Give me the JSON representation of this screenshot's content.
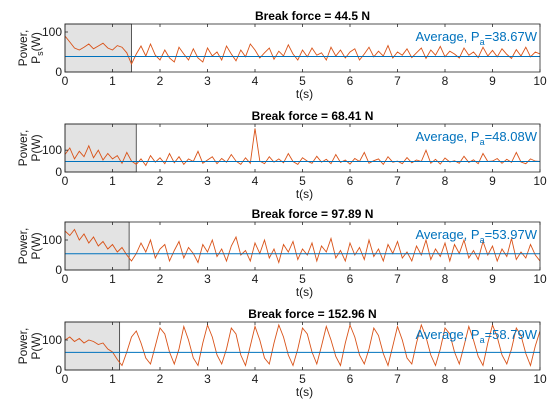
{
  "chart_data": [
    {
      "type": "line",
      "title": "Break force = 44.5 N",
      "xlabel": "t(s)",
      "ylabel_top": "Power,",
      "ylabel_bottom_main": "P",
      "ylabel_bottom_sub": "s",
      "ylabel_bottom_rest": "(W)",
      "xlim": [
        0,
        10
      ],
      "ylim": [
        0,
        120
      ],
      "xticks": [
        "0",
        "1",
        "2",
        "3",
        "4",
        "5",
        "6",
        "7",
        "8",
        "9",
        "10"
      ],
      "yticks": [
        "0",
        "100"
      ],
      "annotation_main": "Average, P",
      "annotation_sub": "a",
      "annotation_rest": "=38.67W",
      "average": 38.67,
      "shaded_region": [
        0,
        1.4
      ],
      "series": [
        {
          "color": "#d95319",
          "x": [
            0,
            0.1,
            0.2,
            0.3,
            0.4,
            0.5,
            0.6,
            0.7,
            0.8,
            0.9,
            1.0,
            1.1,
            1.2,
            1.3,
            1.4,
            1.5,
            1.6,
            1.7,
            1.8,
            1.9,
            2.0,
            2.1,
            2.2,
            2.3,
            2.4,
            2.5,
            2.6,
            2.7,
            2.8,
            2.9,
            3.0,
            3.1,
            3.2,
            3.3,
            3.4,
            3.5,
            3.6,
            3.7,
            3.8,
            3.9,
            4.0,
            4.1,
            4.2,
            4.3,
            4.4,
            4.5,
            4.6,
            4.7,
            4.8,
            4.9,
            5.0,
            5.1,
            5.2,
            5.3,
            5.4,
            5.5,
            5.6,
            5.7,
            5.8,
            5.9,
            6.0,
            6.1,
            6.2,
            6.3,
            6.4,
            6.5,
            6.6,
            6.7,
            6.8,
            6.9,
            7.0,
            7.1,
            7.2,
            7.3,
            7.4,
            7.5,
            7.6,
            7.7,
            7.8,
            7.9,
            8.0,
            8.1,
            8.2,
            8.3,
            8.4,
            8.5,
            8.6,
            8.7,
            8.8,
            8.9,
            9.0,
            9.1,
            9.2,
            9.3,
            9.4,
            9.5,
            9.6,
            9.7,
            9.8,
            9.9,
            10.0
          ],
          "y": [
            90,
            75,
            60,
            55,
            62,
            70,
            58,
            65,
            72,
            60,
            55,
            66,
            62,
            48,
            20,
            45,
            65,
            40,
            70,
            42,
            30,
            55,
            35,
            25,
            62,
            45,
            30,
            58,
            35,
            25,
            60,
            40,
            50,
            30,
            65,
            45,
            28,
            55,
            38,
            70,
            55,
            35,
            48,
            60,
            32,
            52,
            40,
            68,
            45,
            30,
            55,
            38,
            60,
            42,
            48,
            30,
            62,
            40,
            55,
            35,
            50,
            58,
            30,
            45,
            62,
            38,
            52,
            40,
            66,
            35,
            50,
            42,
            58,
            36,
            48,
            60,
            34,
            55,
            42,
            64,
            38,
            52,
            45,
            35,
            60,
            42,
            50,
            36,
            62,
            40,
            54,
            38,
            58,
            44,
            34,
            56,
            40,
            62,
            38,
            50,
            45
          ]
        },
        {
          "color": "#0072bd",
          "x": [
            0,
            10
          ],
          "y": [
            38.67,
            38.67
          ]
        }
      ]
    },
    {
      "type": "line",
      "title": "Break force = 68.41 N",
      "xlabel": "t(s)",
      "ylabel_top": "Power,",
      "ylabel_bottom_main": "P(W)",
      "xlim": [
        0,
        10
      ],
      "ylim": [
        0,
        220
      ],
      "xticks": [
        "0",
        "1",
        "2",
        "3",
        "4",
        "5",
        "6",
        "7",
        "8",
        "9",
        "10"
      ],
      "yticks": [
        "0",
        "100"
      ],
      "annotation_main": "Average, P",
      "annotation_sub": "a",
      "annotation_rest": "=48.08W",
      "average": 48.08,
      "shaded_region": [
        0,
        1.5
      ],
      "series": [
        {
          "color": "#d95319",
          "x": [
            0,
            0.1,
            0.2,
            0.3,
            0.4,
            0.5,
            0.6,
            0.7,
            0.8,
            0.9,
            1.0,
            1.1,
            1.2,
            1.3,
            1.4,
            1.5,
            1.6,
            1.7,
            1.8,
            1.9,
            2.0,
            2.1,
            2.2,
            2.3,
            2.4,
            2.5,
            2.6,
            2.7,
            2.8,
            2.9,
            3.0,
            3.1,
            3.2,
            3.3,
            3.4,
            3.5,
            3.6,
            3.7,
            3.8,
            3.9,
            4.0,
            4.1,
            4.2,
            4.3,
            4.4,
            4.5,
            4.6,
            4.7,
            4.8,
            4.9,
            5.0,
            5.1,
            5.2,
            5.3,
            5.4,
            5.5,
            5.6,
            5.7,
            5.8,
            5.9,
            6.0,
            6.1,
            6.2,
            6.3,
            6.4,
            6.5,
            6.6,
            6.7,
            6.8,
            6.9,
            7.0,
            7.1,
            7.2,
            7.3,
            7.4,
            7.5,
            7.6,
            7.7,
            7.8,
            7.9,
            8.0,
            8.1,
            8.2,
            8.3,
            8.4,
            8.5,
            8.6,
            8.7,
            8.8,
            8.9,
            9.0,
            9.1,
            9.2,
            9.3,
            9.4,
            9.5,
            9.6,
            9.7,
            9.8,
            9.9,
            10.0
          ],
          "y": [
            80,
            110,
            60,
            95,
            70,
            120,
            65,
            100,
            55,
            85,
            60,
            75,
            40,
            90,
            50,
            35,
            60,
            30,
            75,
            45,
            65,
            38,
            85,
            42,
            70,
            35,
            60,
            48,
            95,
            40,
            55,
            70,
            38,
            62,
            45,
            80,
            50,
            35,
            65,
            40,
            200,
            50,
            38,
            70,
            45,
            60,
            42,
            85,
            48,
            35,
            65,
            50,
            40,
            72,
            45,
            58,
            38,
            80,
            44,
            55,
            36,
            62,
            48,
            90,
            40,
            52,
            60,
            35,
            70,
            45,
            50,
            38,
            66,
            42,
            55,
            48,
            100,
            40,
            58,
            36,
            64,
            46,
            52,
            40,
            72,
            44,
            56,
            38,
            85,
            48,
            50,
            62,
            40,
            58,
            44,
            90,
            46,
            38,
            60,
            50,
            48
          ]
        },
        {
          "color": "#0072bd",
          "x": [
            0,
            10
          ],
          "y": [
            48.08,
            48.08
          ]
        }
      ]
    },
    {
      "type": "line",
      "title": "Break force = 97.89 N",
      "xlabel": "t(s)",
      "ylabel_top": "Power,",
      "ylabel_bottom_main": "P(W)",
      "xlim": [
        0,
        10
      ],
      "ylim": [
        0,
        160
      ],
      "xticks": [
        "0",
        "1",
        "2",
        "3",
        "4",
        "5",
        "6",
        "7",
        "8",
        "9",
        "10"
      ],
      "yticks": [
        "0",
        "100"
      ],
      "annotation_main": "Average, P",
      "annotation_sub": "a",
      "annotation_rest": "=53.97W",
      "average": 53.97,
      "shaded_region": [
        0,
        1.35
      ],
      "series": [
        {
          "color": "#d95319",
          "x": [
            0,
            0.1,
            0.2,
            0.3,
            0.4,
            0.5,
            0.6,
            0.7,
            0.8,
            0.9,
            1.0,
            1.1,
            1.2,
            1.3,
            1.4,
            1.5,
            1.6,
            1.7,
            1.8,
            1.9,
            2.0,
            2.1,
            2.2,
            2.3,
            2.4,
            2.5,
            2.6,
            2.7,
            2.8,
            2.9,
            3.0,
            3.1,
            3.2,
            3.3,
            3.4,
            3.5,
            3.6,
            3.7,
            3.8,
            3.9,
            4.0,
            4.1,
            4.2,
            4.3,
            4.4,
            4.5,
            4.6,
            4.7,
            4.8,
            4.9,
            5.0,
            5.1,
            5.2,
            5.3,
            5.4,
            5.5,
            5.6,
            5.7,
            5.8,
            5.9,
            6.0,
            6.1,
            6.2,
            6.3,
            6.4,
            6.5,
            6.6,
            6.7,
            6.8,
            6.9,
            7.0,
            7.1,
            7.2,
            7.3,
            7.4,
            7.5,
            7.6,
            7.7,
            7.8,
            7.9,
            8.0,
            8.1,
            8.2,
            8.3,
            8.4,
            8.5,
            8.6,
            8.7,
            8.8,
            8.9,
            9.0,
            9.1,
            9.2,
            9.3,
            9.4,
            9.5,
            9.6,
            9.7,
            9.8,
            9.9,
            10.0
          ],
          "y": [
            130,
            115,
            135,
            100,
            120,
            90,
            110,
            80,
            95,
            70,
            85,
            60,
            75,
            50,
            30,
            55,
            90,
            60,
            100,
            40,
            70,
            85,
            30,
            65,
            95,
            40,
            75,
            55,
            25,
            85,
            60,
            100,
            45,
            70,
            30,
            80,
            110,
            50,
            65,
            30,
            90,
            55,
            100,
            40,
            70,
            25,
            85,
            60,
            95,
            35,
            70,
            50,
            90,
            30,
            80,
            60,
            105,
            40,
            65,
            30,
            90,
            50,
            75,
            35,
            100,
            45,
            70,
            30,
            85,
            55,
            95,
            40,
            60,
            30,
            80,
            50,
            100,
            35,
            70,
            45,
            90,
            30,
            85,
            55,
            100,
            40,
            65,
            35,
            95,
            50,
            80,
            30,
            70,
            45,
            105,
            35,
            60,
            40,
            85,
            50,
            30
          ]
        },
        {
          "color": "#0072bd",
          "x": [
            0,
            10
          ],
          "y": [
            53.97,
            53.97
          ]
        }
      ]
    },
    {
      "type": "line",
      "title": "Break force = 152.96 N",
      "xlabel": "t(s)",
      "ylabel_top": "Power,",
      "ylabel_bottom_main": "P(W)",
      "xlim": [
        0,
        10
      ],
      "ylim": [
        0,
        160
      ],
      "xticks": [
        "0",
        "1",
        "2",
        "3",
        "4",
        "5",
        "6",
        "7",
        "8",
        "9",
        "10"
      ],
      "yticks": [
        "0",
        "100"
      ],
      "annotation_main": "Average, P",
      "annotation_sub": "a",
      "annotation_rest": "=58.79W",
      "average": 58.79,
      "shaded_region": [
        0,
        1.15
      ],
      "series": [
        {
          "color": "#d95319",
          "x": [
            0,
            0.1,
            0.2,
            0.3,
            0.4,
            0.5,
            0.6,
            0.7,
            0.8,
            0.9,
            1.0,
            1.1,
            1.2,
            1.3,
            1.4,
            1.5,
            1.6,
            1.7,
            1.8,
            1.9,
            2.0,
            2.1,
            2.2,
            2.3,
            2.4,
            2.5,
            2.6,
            2.7,
            2.8,
            2.9,
            3.0,
            3.1,
            3.2,
            3.3,
            3.4,
            3.5,
            3.6,
            3.7,
            3.8,
            3.9,
            4.0,
            4.1,
            4.2,
            4.3,
            4.4,
            4.5,
            4.6,
            4.7,
            4.8,
            4.9,
            5.0,
            5.1,
            5.2,
            5.3,
            5.4,
            5.5,
            5.6,
            5.7,
            5.8,
            5.9,
            6.0,
            6.1,
            6.2,
            6.3,
            6.4,
            6.5,
            6.6,
            6.7,
            6.8,
            6.9,
            7.0,
            7.1,
            7.2,
            7.3,
            7.4,
            7.5,
            7.6,
            7.7,
            7.8,
            7.9,
            8.0,
            8.1,
            8.2,
            8.3,
            8.4,
            8.5,
            8.6,
            8.7,
            8.8,
            8.9,
            9.0,
            9.1,
            9.2,
            9.3,
            9.4,
            9.5,
            9.6,
            9.7,
            9.8,
            9.9,
            10.0
          ],
          "y": [
            100,
            110,
            95,
            105,
            90,
            100,
            95,
            85,
            90,
            70,
            60,
            35,
            15,
            60,
            110,
            130,
            90,
            40,
            20,
            80,
            140,
            120,
            60,
            20,
            70,
            145,
            100,
            40,
            15,
            90,
            150,
            110,
            50,
            20,
            70,
            140,
            120,
            50,
            15,
            80,
            145,
            100,
            40,
            20,
            90,
            150,
            110,
            50,
            15,
            70,
            140,
            120,
            60,
            20,
            80,
            145,
            100,
            45,
            15,
            90,
            150,
            110,
            50,
            20,
            70,
            140,
            115,
            55,
            15,
            80,
            145,
            100,
            40,
            20,
            90,
            150,
            110,
            50,
            15,
            70,
            140,
            120,
            60,
            20,
            80,
            145,
            100,
            45,
            15,
            90,
            150,
            110,
            50,
            20,
            70,
            140,
            115,
            55,
            15,
            80,
            130
          ]
        },
        {
          "color": "#0072bd",
          "x": [
            0,
            10
          ],
          "y": [
            58.79,
            58.79
          ]
        }
      ]
    }
  ]
}
